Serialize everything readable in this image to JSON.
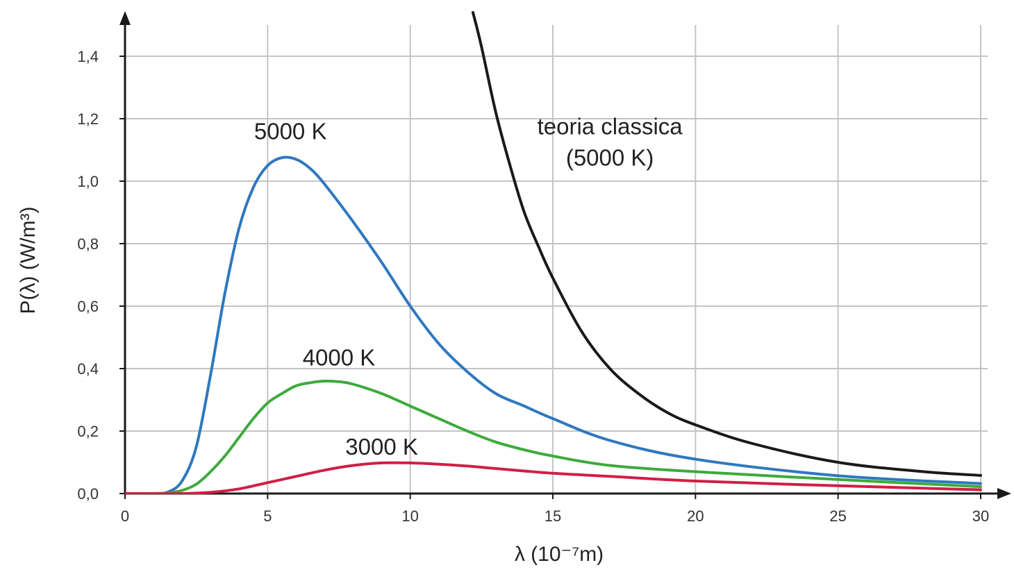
{
  "chart_data": {
    "type": "line",
    "xlabel": "λ (10⁻⁷m)",
    "ylabel": "P(λ) (W/m³)",
    "xlim": [
      0,
      30
    ],
    "ylim": [
      0,
      1.5
    ],
    "grid": true,
    "x_ticks": [
      {
        "value": 0,
        "label": "0"
      },
      {
        "value": 5,
        "label": "5"
      },
      {
        "value": 10,
        "label": "10"
      },
      {
        "value": 15,
        "label": "15"
      },
      {
        "value": 20,
        "label": "20"
      },
      {
        "value": 25,
        "label": "25"
      },
      {
        "value": 30,
        "label": "30"
      }
    ],
    "y_ticks": [
      {
        "value": 0,
        "label": "0,0"
      },
      {
        "value": 0.2,
        "label": "0,2"
      },
      {
        "value": 0.4,
        "label": "0,4"
      },
      {
        "value": 0.6,
        "label": "0,6"
      },
      {
        "value": 0.8,
        "label": "0,8"
      },
      {
        "value": 1.0,
        "label": "1,0"
      },
      {
        "value": 1.2,
        "label": "1,2"
      },
      {
        "value": 1.4,
        "label": "1,4"
      }
    ],
    "series": [
      {
        "name": "5000 K",
        "color": "#2f78be",
        "points": [
          [
            0,
            0
          ],
          [
            1,
            0
          ],
          [
            1.5,
            0.005
          ],
          [
            2,
            0.04
          ],
          [
            2.5,
            0.15
          ],
          [
            3,
            0.38
          ],
          [
            3.5,
            0.64
          ],
          [
            4,
            0.85
          ],
          [
            4.5,
            0.98
          ],
          [
            5,
            1.05
          ],
          [
            5.5,
            1.075
          ],
          [
            6,
            1.07
          ],
          [
            6.5,
            1.04
          ],
          [
            7,
            0.99
          ],
          [
            8,
            0.87
          ],
          [
            9,
            0.74
          ],
          [
            10,
            0.6
          ],
          [
            11,
            0.48
          ],
          [
            12,
            0.39
          ],
          [
            13,
            0.32
          ],
          [
            14,
            0.28
          ],
          [
            15,
            0.24
          ],
          [
            17,
            0.17
          ],
          [
            20,
            0.11
          ],
          [
            25,
            0.057
          ],
          [
            30,
            0.032
          ]
        ]
      },
      {
        "name": "4000 K",
        "color": "#3daa3c",
        "points": [
          [
            0,
            0
          ],
          [
            1,
            0
          ],
          [
            1.5,
            0.002
          ],
          [
            2,
            0.01
          ],
          [
            2.5,
            0.03
          ],
          [
            3,
            0.07
          ],
          [
            3.5,
            0.12
          ],
          [
            4,
            0.18
          ],
          [
            4.5,
            0.24
          ],
          [
            5,
            0.29
          ],
          [
            5.5,
            0.32
          ],
          [
            6,
            0.345
          ],
          [
            6.5,
            0.355
          ],
          [
            7,
            0.36
          ],
          [
            7.5,
            0.358
          ],
          [
            8,
            0.35
          ],
          [
            9,
            0.32
          ],
          [
            10,
            0.28
          ],
          [
            11,
            0.24
          ],
          [
            12,
            0.2
          ],
          [
            13,
            0.165
          ],
          [
            14,
            0.14
          ],
          [
            15,
            0.12
          ],
          [
            17,
            0.09
          ],
          [
            20,
            0.07
          ],
          [
            25,
            0.045
          ],
          [
            30,
            0.022
          ]
        ]
      },
      {
        "name": "3000 K",
        "color": "#d01f45",
        "points": [
          [
            0,
            0
          ],
          [
            2,
            0
          ],
          [
            3,
            0.004
          ],
          [
            4,
            0.015
          ],
          [
            5,
            0.035
          ],
          [
            6,
            0.055
          ],
          [
            7,
            0.075
          ],
          [
            8,
            0.09
          ],
          [
            9,
            0.098
          ],
          [
            10,
            0.098
          ],
          [
            11,
            0.094
          ],
          [
            12,
            0.088
          ],
          [
            13,
            0.08
          ],
          [
            15,
            0.065
          ],
          [
            17,
            0.055
          ],
          [
            20,
            0.04
          ],
          [
            25,
            0.025
          ],
          [
            30,
            0.012
          ]
        ]
      },
      {
        "name": "teoria classica (5000 K)",
        "color": "#1a1a1a",
        "points": [
          [
            12.2,
            1.54
          ],
          [
            12.5,
            1.43
          ],
          [
            13,
            1.22
          ],
          [
            13.5,
            1.05
          ],
          [
            14,
            0.9
          ],
          [
            14.5,
            0.79
          ],
          [
            15,
            0.69
          ],
          [
            16,
            0.52
          ],
          [
            17,
            0.4
          ],
          [
            18,
            0.32
          ],
          [
            19,
            0.26
          ],
          [
            20,
            0.22
          ],
          [
            22,
            0.16
          ],
          [
            25,
            0.1
          ],
          [
            28,
            0.07
          ],
          [
            30,
            0.058
          ]
        ]
      }
    ],
    "annotations": [
      {
        "text": "5000 K",
        "x": 5.8,
        "y": 1.135,
        "anchor": "middle"
      },
      {
        "text": "4000 K",
        "x": 7.5,
        "y": 0.41,
        "anchor": "middle"
      },
      {
        "text": "3000 K",
        "x": 9,
        "y": 0.125,
        "anchor": "middle"
      },
      {
        "text": "teoria classica",
        "x": 17,
        "y": 1.15,
        "anchor": "middle"
      },
      {
        "text": "(5000 K)",
        "x": 17,
        "y": 1.05,
        "anchor": "middle"
      }
    ],
    "colors": {
      "grid": "#c4c4c4",
      "axis": "#1a1a1a"
    }
  }
}
